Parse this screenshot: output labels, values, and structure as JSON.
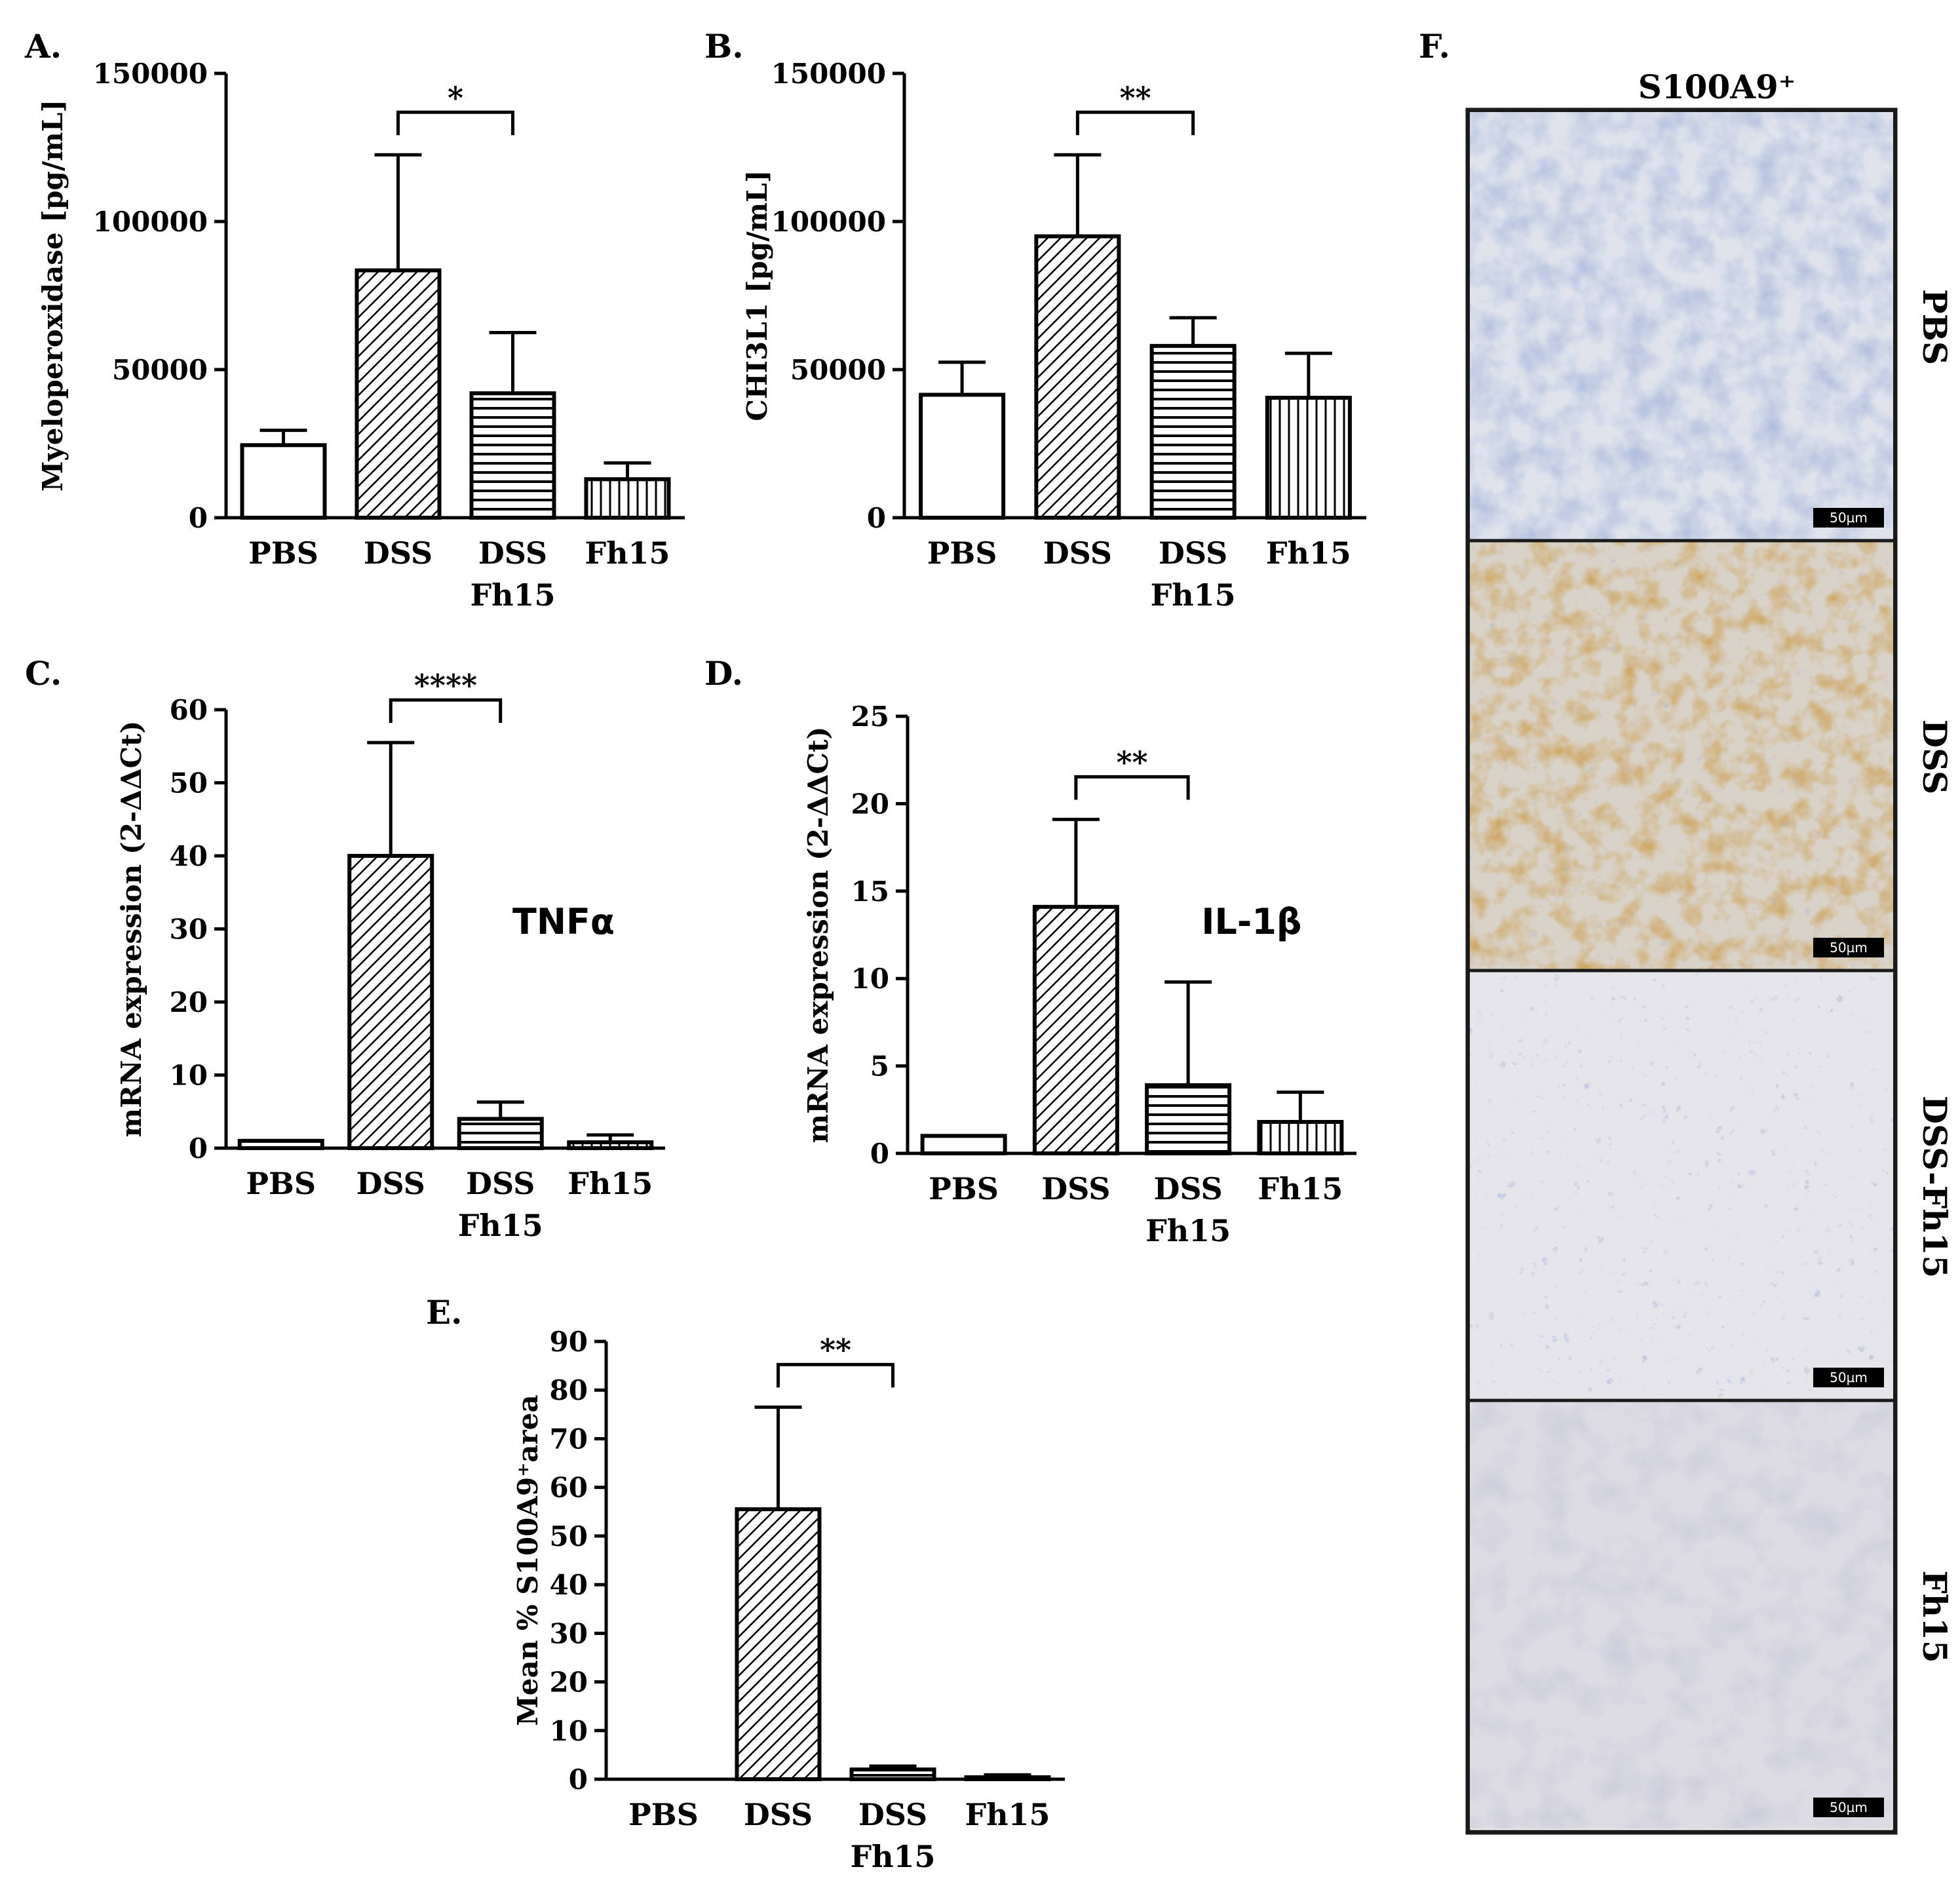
{
  "charts": [
    {
      "id": "A",
      "panel_label": "A.",
      "type": "bar",
      "ylabel": "Myeloperoxidase [pg/mL]",
      "ylim": [
        0,
        150000
      ],
      "yticks": [
        0,
        50000,
        100000,
        150000
      ],
      "categories": [
        [
          "PBS"
        ],
        [
          "DSS"
        ],
        [
          "DSS",
          "Fh15"
        ],
        [
          "Fh15"
        ]
      ],
      "values": [
        24500,
        83500,
        42000,
        13000
      ],
      "errors": [
        5000,
        39000,
        20500,
        5500
      ],
      "patterns": [
        "none",
        "diag",
        "horiz",
        "vert"
      ],
      "significance": [
        {
          "from": 1,
          "to": 2,
          "label": "*"
        }
      ],
      "annotation": ""
    },
    {
      "id": "B",
      "panel_label": "B.",
      "type": "bar",
      "ylabel": "CHI3L1 [pg/mL]",
      "ylim": [
        0,
        150000
      ],
      "yticks": [
        0,
        50000,
        100000,
        150000
      ],
      "categories": [
        [
          "PBS"
        ],
        [
          "DSS"
        ],
        [
          "DSS",
          "Fh15"
        ],
        [
          "Fh15"
        ]
      ],
      "values": [
        41500,
        95000,
        58000,
        40500
      ],
      "errors": [
        11000,
        27500,
        9500,
        15000
      ],
      "patterns": [
        "none",
        "diag",
        "horiz",
        "vert"
      ],
      "significance": [
        {
          "from": 1,
          "to": 2,
          "label": "**"
        }
      ],
      "annotation": ""
    },
    {
      "id": "C",
      "panel_label": "C.",
      "type": "bar",
      "ylabel": "mRNA expression (2-ΔΔCt)",
      "ylim": [
        0,
        60
      ],
      "yticks": [
        0,
        10,
        20,
        30,
        40,
        50,
        60
      ],
      "categories": [
        [
          "PBS"
        ],
        [
          "DSS"
        ],
        [
          "DSS",
          "Fh15"
        ],
        [
          "Fh15"
        ]
      ],
      "values": [
        1.0,
        40.0,
        4.0,
        0.8
      ],
      "errors": [
        0,
        15.5,
        2.3,
        1.0
      ],
      "patterns": [
        "none",
        "diag",
        "horiz",
        "vert"
      ],
      "significance": [
        {
          "from": 1,
          "to": 2,
          "label": "****"
        }
      ],
      "annotation": "TNFα"
    },
    {
      "id": "D",
      "panel_label": "D.",
      "type": "bar",
      "ylabel": "mRNA expression (2-ΔΔCt)",
      "ylim": [
        0,
        25
      ],
      "yticks": [
        0,
        5,
        10,
        15,
        20,
        25
      ],
      "categories": [
        [
          "PBS"
        ],
        [
          "DSS"
        ],
        [
          "DSS",
          "Fh15"
        ],
        [
          "Fh15"
        ]
      ],
      "values": [
        1.0,
        14.1,
        3.9,
        1.8
      ],
      "errors": [
        0,
        5.0,
        5.9,
        1.7
      ],
      "patterns": [
        "none",
        "diag",
        "horiz",
        "vert"
      ],
      "significance": [
        {
          "from": 1,
          "to": 2,
          "label": "**"
        }
      ],
      "annotation": "IL-1β"
    },
    {
      "id": "E",
      "panel_label": "E.",
      "type": "bar",
      "ylabel": "Mean % S100A9⁺area",
      "ylim": [
        0,
        90
      ],
      "yticks": [
        0,
        10,
        20,
        30,
        40,
        50,
        60,
        70,
        80,
        90
      ],
      "categories": [
        [
          "PBS"
        ],
        [
          "DSS"
        ],
        [
          "DSS",
          "Fh15"
        ],
        [
          "Fh15"
        ]
      ],
      "values": [
        0,
        55.5,
        2.0,
        0.4
      ],
      "errors": [
        0,
        21.0,
        0.7,
        0.5
      ],
      "patterns": [
        "none",
        "diag",
        "horiz",
        "vert"
      ],
      "significance": [
        {
          "from": 1,
          "to": 2,
          "label": "**"
        }
      ],
      "annotation": ""
    }
  ],
  "histology": {
    "panel_label": "F.",
    "title": "S100A9⁺",
    "scale_bar": "50µm",
    "rows": [
      {
        "label": "PBS",
        "stain": "blue"
      },
      {
        "label": "DSS",
        "stain": "brown"
      },
      {
        "label": "DSS-Fh15",
        "stain": "light"
      },
      {
        "label": "Fh15",
        "stain": "pale"
      }
    ]
  }
}
